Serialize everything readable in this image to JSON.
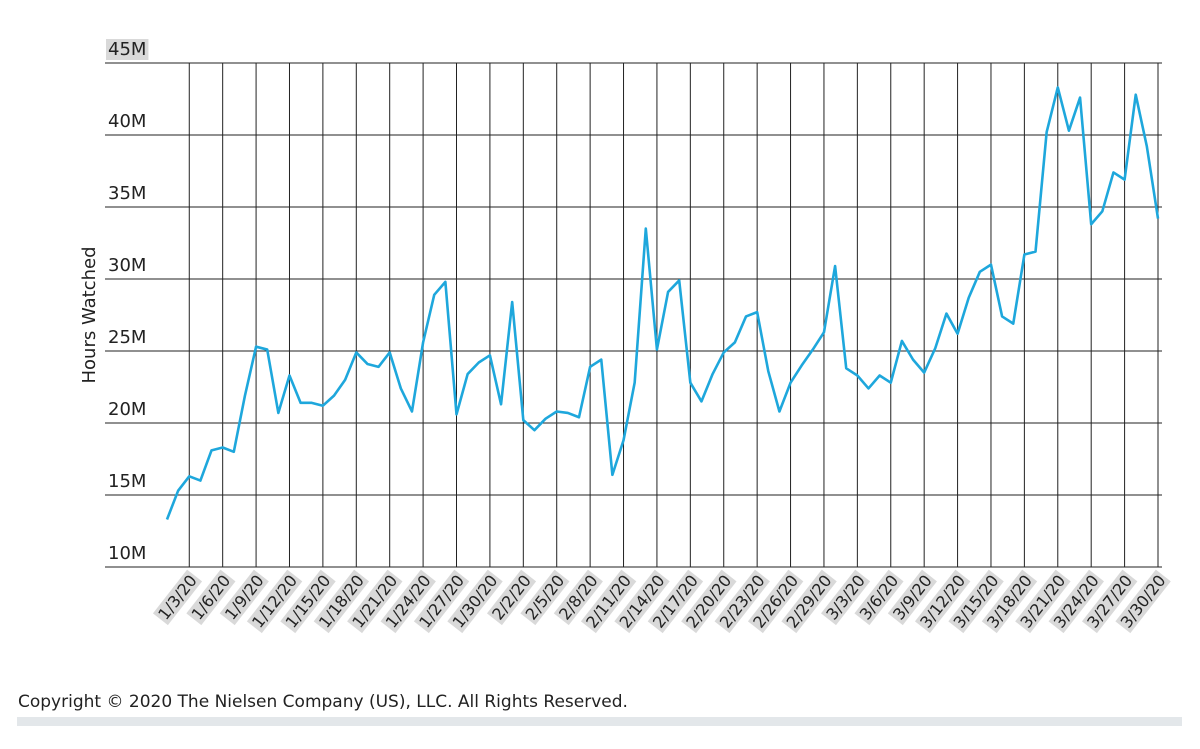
{
  "chart_data": {
    "type": "line",
    "y_label": "Hours Watched",
    "categories": [
      null,
      null,
      "1/3/20",
      null,
      null,
      "1/6/20",
      null,
      null,
      "1/9/20",
      null,
      null,
      "1/12/20",
      null,
      null,
      "1/15/20",
      null,
      null,
      "1/18/20",
      null,
      null,
      "1/21/20",
      null,
      null,
      "1/24/20",
      null,
      null,
      "1/27/20",
      null,
      null,
      "1/30/20",
      null,
      null,
      "2/2/20",
      null,
      null,
      "2/5/20",
      null,
      null,
      "2/8/20",
      null,
      null,
      "2/11/20",
      null,
      null,
      "2/14/20",
      null,
      null,
      "2/17/20",
      null,
      null,
      "2/20/20",
      null,
      null,
      "2/23/20",
      null,
      null,
      "2/26/20",
      null,
      null,
      "2/29/20",
      null,
      null,
      "3/3/20",
      null,
      null,
      "3/6/20",
      null,
      null,
      "3/9/20",
      null,
      null,
      "3/12/20",
      null,
      null,
      "3/15/20",
      null,
      null,
      "3/18/20",
      null,
      null,
      "3/21/20",
      null,
      null,
      "3/24/20",
      null,
      null,
      "3/27/20",
      null,
      null,
      "3/30/20"
    ],
    "series": [
      {
        "color": "#1ea7dc",
        "values": [
          13300000,
          15300000,
          16300000,
          16000000,
          18100000,
          18300000,
          18000000,
          21900000,
          25300000,
          25100000,
          20700000,
          23300000,
          21400000,
          21400000,
          21200000,
          21900000,
          23000000,
          24900000,
          24100000,
          23900000,
          24900000,
          22400000,
          20800000,
          25600000,
          28900000,
          29800000,
          20600000,
          23400000,
          24200000,
          24700000,
          21300000,
          28400000,
          20200000,
          19500000,
          20300000,
          20800000,
          20700000,
          20400000,
          23900000,
          24400000,
          16400000,
          18800000,
          22800000,
          33500000,
          25100000,
          29100000,
          29900000,
          22800000,
          21500000,
          23400000,
          24900000,
          25600000,
          27400000,
          27700000,
          23600000,
          20800000,
          22800000,
          24000000,
          25100000,
          26300000,
          30900000,
          23800000,
          23300000,
          22400000,
          23300000,
          22800000,
          25700000,
          24400000,
          23500000,
          25200000,
          27600000,
          26200000,
          28700000,
          30500000,
          31000000,
          27400000,
          26900000,
          31700000,
          31900000,
          40200000,
          43300000,
          40300000,
          42600000,
          33800000,
          34700000,
          37400000,
          36900000,
          42800000,
          39200000,
          34200000
        ]
      }
    ],
    "ylim": [
      10000000,
      45000000
    ],
    "yticks": [
      {
        "value": 10000000,
        "label": "10M"
      },
      {
        "value": 15000000,
        "label": "15M"
      },
      {
        "value": 20000000,
        "label": "20M"
      },
      {
        "value": 25000000,
        "label": "25M"
      },
      {
        "value": 30000000,
        "label": "30M"
      },
      {
        "value": 35000000,
        "label": "35M"
      },
      {
        "value": 40000000,
        "label": "40M"
      },
      {
        "value": 45000000,
        "label": "45M"
      }
    ],
    "grid": true
  },
  "copyright": "Copyright © 2020 The Nielsen Company (US), LLC. All Rights Reserved."
}
